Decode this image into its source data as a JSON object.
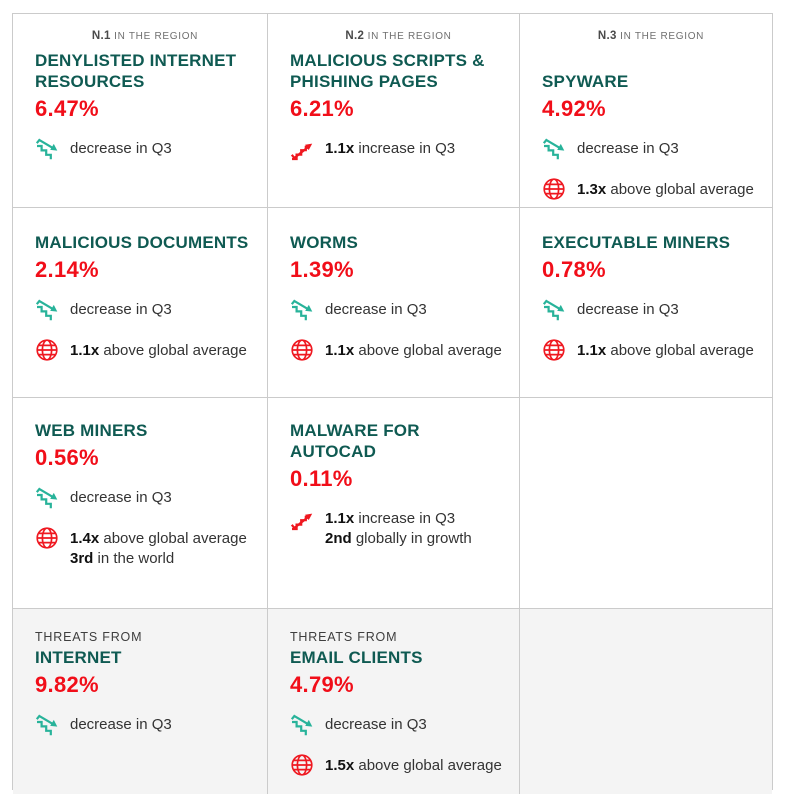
{
  "colors": {
    "title_teal": "#0f5a52",
    "value_red": "#f10e19",
    "decrease_mint": "#28b39a",
    "increase_red": "#ef1820",
    "globe_red": "#ef1820",
    "rank_gray": "#6f6f6f",
    "body_text": "#333333",
    "border_gray": "#cbcbcb",
    "shaded_row_bg": "#f4f4f4"
  },
  "grid": {
    "columns": 3,
    "rows": [
      {
        "shaded": false,
        "cells": [
          {
            "rank_prefix": "N.1",
            "rank_suffix": "IN THE REGION",
            "title": "DENYLISTED INTERNET RESOURCES",
            "value": "6.47%",
            "indicators": [
              {
                "icon": "stairs-down-icon",
                "lines": [
                  {
                    "bold": "",
                    "text": "decrease in Q3"
                  }
                ]
              }
            ]
          },
          {
            "rank_prefix": "N.2",
            "rank_suffix": "IN THE REGION",
            "title": "MALICIOUS SCRIPTS & PHISHING PAGES",
            "value": "6.21%",
            "indicators": [
              {
                "icon": "stairs-up-icon",
                "lines": [
                  {
                    "bold": "1.1x",
                    "text": "increase in Q3"
                  }
                ]
              }
            ]
          },
          {
            "rank_prefix": "N.3",
            "rank_suffix": "IN THE REGION",
            "title": "SPYWARE",
            "value": "4.92%",
            "indicators": [
              {
                "icon": "stairs-down-icon",
                "lines": [
                  {
                    "bold": "",
                    "text": "decrease in Q3"
                  }
                ]
              },
              {
                "icon": "globe-icon",
                "lines": [
                  {
                    "bold": "1.3x",
                    "text": "above global average"
                  }
                ]
              }
            ]
          }
        ]
      },
      {
        "shaded": false,
        "cells": [
          {
            "title": "MALICIOUS DOCUMENTS",
            "value": "2.14%",
            "indicators": [
              {
                "icon": "stairs-down-icon",
                "lines": [
                  {
                    "bold": "",
                    "text": "decrease in Q3"
                  }
                ]
              },
              {
                "icon": "globe-icon",
                "lines": [
                  {
                    "bold": "1.1x",
                    "text": "above global average"
                  }
                ]
              }
            ]
          },
          {
            "title": "WORMS",
            "value": "1.39%",
            "indicators": [
              {
                "icon": "stairs-down-icon",
                "lines": [
                  {
                    "bold": "",
                    "text": "decrease in Q3"
                  }
                ]
              },
              {
                "icon": "globe-icon",
                "lines": [
                  {
                    "bold": "1.1x",
                    "text": "above global average"
                  }
                ]
              }
            ]
          },
          {
            "title": "EXECUTABLE MINERS",
            "value": "0.78%",
            "indicators": [
              {
                "icon": "stairs-down-icon",
                "lines": [
                  {
                    "bold": "",
                    "text": "decrease in Q3"
                  }
                ]
              },
              {
                "icon": "globe-icon",
                "lines": [
                  {
                    "bold": "1.1x",
                    "text": "above global average"
                  }
                ]
              }
            ]
          }
        ]
      },
      {
        "shaded": false,
        "cells": [
          {
            "title": "WEB MINERS",
            "value": "0.56%",
            "indicators": [
              {
                "icon": "stairs-down-icon",
                "lines": [
                  {
                    "bold": "",
                    "text": "decrease in Q3"
                  }
                ]
              },
              {
                "icon": "globe-icon",
                "lines": [
                  {
                    "bold": "1.4x",
                    "text": "above global average"
                  },
                  {
                    "bold": "3rd",
                    "text": "in the world"
                  }
                ]
              }
            ]
          },
          {
            "title": "MALWARE FOR AUTOCAD",
            "value": "0.11%",
            "indicators": [
              {
                "icon": "stairs-up-icon",
                "lines": [
                  {
                    "bold": "1.1x",
                    "text": "increase in Q3"
                  },
                  {
                    "bold": "2nd",
                    "text": "globally in growth"
                  }
                ]
              }
            ]
          },
          {
            "empty": true
          }
        ]
      },
      {
        "shaded": true,
        "cells": [
          {
            "pre_title": "THREATS FROM",
            "title": "INTERNET",
            "value": "9.82%",
            "indicators": [
              {
                "icon": "stairs-down-icon",
                "lines": [
                  {
                    "bold": "",
                    "text": "decrease in Q3"
                  }
                ]
              }
            ]
          },
          {
            "pre_title": "THREATS FROM",
            "title": "EMAIL CLIENTS",
            "value": "4.79%",
            "indicators": [
              {
                "icon": "stairs-down-icon",
                "lines": [
                  {
                    "bold": "",
                    "text": "decrease in Q3"
                  }
                ]
              },
              {
                "icon": "globe-icon",
                "lines": [
                  {
                    "bold": "1.5x",
                    "text": "above global average"
                  }
                ]
              }
            ]
          },
          {
            "empty": true
          }
        ]
      }
    ]
  },
  "chart_data": {
    "type": "table",
    "title": "Threat statistics — share of users attacked, Q3",
    "columns": [
      "threat",
      "share_pct",
      "region_rank",
      "trend",
      "vs_global",
      "world_note"
    ],
    "rows": [
      {
        "threat": "Denylisted internet resources",
        "share_pct": 6.47,
        "region_rank": "N.1 in the region",
        "trend": "decrease in Q3",
        "vs_global": "",
        "world_note": ""
      },
      {
        "threat": "Malicious scripts & phishing pages",
        "share_pct": 6.21,
        "region_rank": "N.2 in the region",
        "trend": "1.1x increase in Q3",
        "vs_global": "",
        "world_note": ""
      },
      {
        "threat": "Spyware",
        "share_pct": 4.92,
        "region_rank": "N.3 in the region",
        "trend": "decrease in Q3",
        "vs_global": "1.3x above global average",
        "world_note": ""
      },
      {
        "threat": "Malicious documents",
        "share_pct": 2.14,
        "region_rank": "",
        "trend": "decrease in Q3",
        "vs_global": "1.1x above global average",
        "world_note": ""
      },
      {
        "threat": "Worms",
        "share_pct": 1.39,
        "region_rank": "",
        "trend": "decrease in Q3",
        "vs_global": "1.1x above global average",
        "world_note": ""
      },
      {
        "threat": "Executable miners",
        "share_pct": 0.78,
        "region_rank": "",
        "trend": "decrease in Q3",
        "vs_global": "1.1x above global average",
        "world_note": ""
      },
      {
        "threat": "Web miners",
        "share_pct": 0.56,
        "region_rank": "",
        "trend": "decrease in Q3",
        "vs_global": "1.4x above global average",
        "world_note": "3rd in the world"
      },
      {
        "threat": "Malware for AutoCAD",
        "share_pct": 0.11,
        "region_rank": "",
        "trend": "1.1x increase in Q3",
        "vs_global": "",
        "world_note": "2nd globally in growth"
      },
      {
        "threat": "Threats from internet",
        "share_pct": 9.82,
        "region_rank": "",
        "trend": "decrease in Q3",
        "vs_global": "",
        "world_note": ""
      },
      {
        "threat": "Threats from email clients",
        "share_pct": 4.79,
        "region_rank": "",
        "trend": "decrease in Q3",
        "vs_global": "1.5x above global average",
        "world_note": ""
      }
    ]
  }
}
